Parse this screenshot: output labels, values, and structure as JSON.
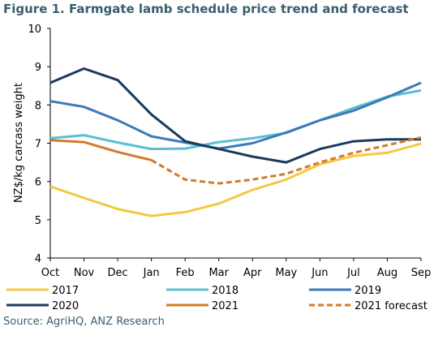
{
  "source": "Source: AgriHQ, ANZ Research",
  "chart_data": {
    "type": "line",
    "title": "Figure 1. Farmgate lamb schedule price trend and forecast",
    "ylabel": "NZ$/kg carcass weight",
    "xlabel": "",
    "ylim": [
      4,
      10
    ],
    "yticks": [
      "4",
      "5",
      "6",
      "7",
      "8",
      "9",
      "10"
    ],
    "categories": [
      "Oct",
      "Nov",
      "Dec",
      "Jan",
      "Feb",
      "Mar",
      "Apr",
      "May",
      "Jun",
      "Jul",
      "Aug",
      "Sep"
    ],
    "grid": false,
    "legend": "bottom",
    "series": [
      {
        "name": "2017",
        "color": "#f5c842",
        "dashed": false,
        "values": [
          5.87,
          5.57,
          5.28,
          5.1,
          5.2,
          5.42,
          5.78,
          6.05,
          6.45,
          6.67,
          6.75,
          6.99
        ]
      },
      {
        "name": "2018",
        "color": "#5bbfcf",
        "dashed": false,
        "values": [
          7.13,
          7.21,
          7.02,
          6.85,
          6.86,
          7.03,
          7.13,
          7.27,
          7.6,
          7.92,
          8.22,
          8.38
        ]
      },
      {
        "name": "2019",
        "color": "#3d7ab8",
        "dashed": false,
        "values": [
          8.1,
          7.95,
          7.6,
          7.18,
          7.02,
          6.86,
          7.0,
          7.28,
          7.6,
          7.85,
          8.2,
          8.58
        ]
      },
      {
        "name": "2020",
        "color": "#1b3a5c",
        "dashed": false,
        "values": [
          8.58,
          8.95,
          8.65,
          7.75,
          7.05,
          6.85,
          6.65,
          6.5,
          6.85,
          7.05,
          7.1,
          7.1
        ]
      },
      {
        "name": "2021",
        "color": "#d47a2a",
        "dashed": false,
        "values": [
          7.08,
          7.03,
          6.77,
          6.56,
          null,
          null,
          null,
          null,
          null,
          null,
          null,
          null
        ]
      },
      {
        "name": "2021 forecast",
        "color": "#d47a2a",
        "dashed": true,
        "values": [
          null,
          null,
          null,
          6.56,
          6.05,
          5.95,
          6.05,
          6.2,
          6.5,
          6.75,
          6.95,
          7.15
        ]
      }
    ]
  }
}
